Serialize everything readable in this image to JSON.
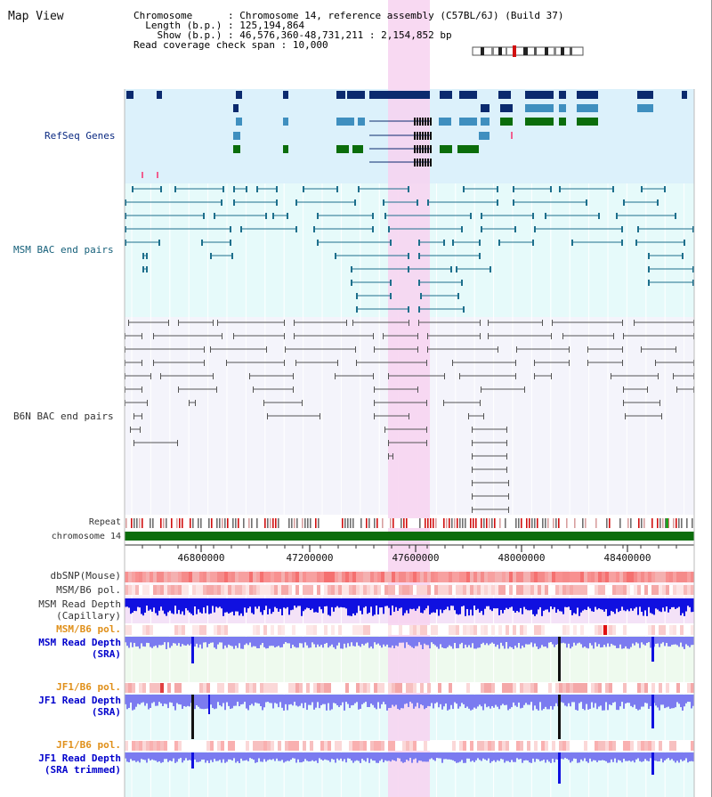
{
  "view_title": "Map View",
  "info": {
    "chromosome_label": "Chromosome",
    "chromosome_value": "Chromosome 14, reference assembly (C57BL/6J) (Build 37)",
    "length_label": "Length (b.p.)",
    "length_value": "125,194,864",
    "show_label": "Show (b.p.)",
    "show_value": "46,576,360-48,731,211 : 2,154,852 bp",
    "coverage_label": "Read coverage check span",
    "coverage_value": "10,000"
  },
  "tracks": {
    "refseq": "RefSeq Genes",
    "msm_bac": "MSM BAC end pairs",
    "b6n_bac": "B6N BAC end pairs",
    "repeat": "Repeat",
    "chromosome": "chromosome 14",
    "dbsnp": "dbSNP(Mouse)",
    "msm_b6_pol_1": "MSM/B6 pol.",
    "msm_depth_cap_1": "MSM Read Depth",
    "msm_depth_cap_2": "(Capillary)",
    "msm_b6_pol_2": "MSM/B6 pol.",
    "msm_depth_sra_1": "MSM Read Depth",
    "msm_depth_sra_2": "(SRA)",
    "jf1_b6_pol_1": "JF1/B6 pol.",
    "jf1_depth_sra_1": "JF1 Read Depth",
    "jf1_depth_sra_2": "(SRA)",
    "jf1_b6_pol_2": "JF1/B6 pol.",
    "jf1_depth_trim_1": "JF1 Read Depth",
    "jf1_depth_trim_2": "(SRA trimmed)"
  },
  "axis": {
    "ticks": [
      "46800000",
      "47200000",
      "47600000",
      "48000000",
      "48400000"
    ]
  },
  "colors": {
    "refseq_bg": "#dcf1fb",
    "bac_bg": "#e6fafa",
    "b6n_bg": "#f4f4fb",
    "highlight": "#f7d2f0",
    "chromosome_bar": "#0b6d0b",
    "gene_dark": "#0b2a6e",
    "gene_mid": "#3f8fbf",
    "gene_green": "#0b6d0b",
    "msm_bac": "#1d6f8c",
    "b6n_bac": "#555555",
    "depth_dark_blue": "#1010e0",
    "depth_light_blue": "#7b7bf0"
  }
}
